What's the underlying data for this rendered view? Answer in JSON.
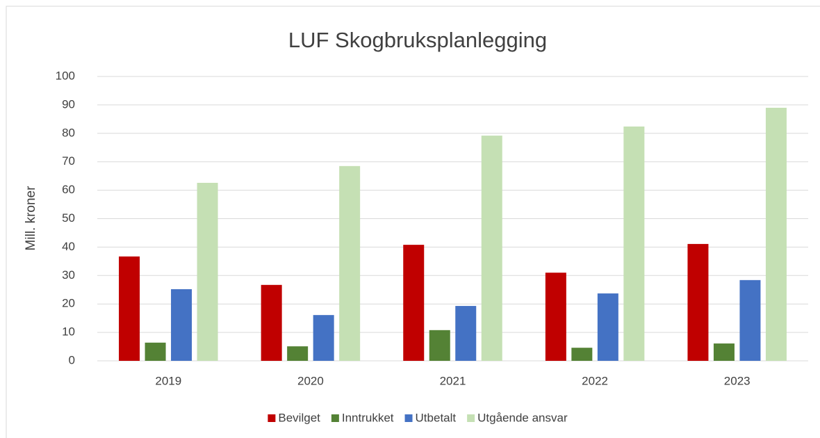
{
  "chart_data": {
    "type": "bar",
    "title": "LUF Skogbruksplanlegging",
    "y_label": "Mill. kroner",
    "categories": [
      "2019",
      "2020",
      "2021",
      "2022",
      "2023"
    ],
    "series": [
      {
        "name": "Bevilget",
        "color": "#c00000",
        "values": [
          36.7,
          26.7,
          40.8,
          31.0,
          41.1
        ]
      },
      {
        "name": "Inntrukket",
        "color": "#548235",
        "values": [
          6.4,
          5.1,
          10.8,
          4.6,
          6.1
        ]
      },
      {
        "name": "Utbetalt",
        "color": "#4472c4",
        "values": [
          25.2,
          16.1,
          19.3,
          23.7,
          28.4
        ]
      },
      {
        "name": "Utgående ansvar",
        "color": "#c5e0b4",
        "values": [
          62.6,
          68.5,
          79.2,
          82.4,
          89.0
        ]
      }
    ],
    "ylim": [
      0,
      100
    ],
    "yticks": [
      0,
      10,
      20,
      30,
      40,
      50,
      60,
      70,
      80,
      90,
      100
    ],
    "grid": true,
    "legend": "bottom"
  }
}
